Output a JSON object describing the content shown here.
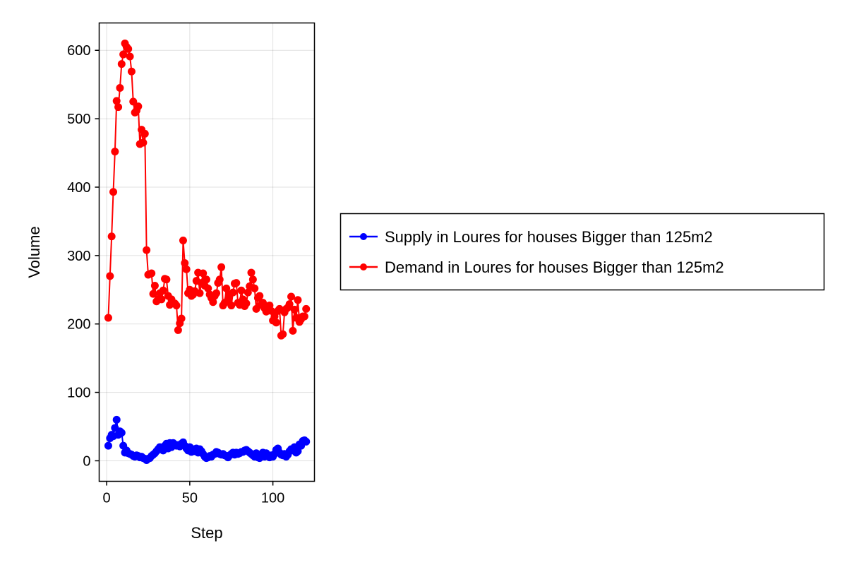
{
  "chart_data": {
    "type": "line",
    "title": "",
    "xlabel": "Step",
    "ylabel": "Volume",
    "xlim": [
      -4.5,
      125
    ],
    "ylim": [
      -30,
      640
    ],
    "xticks": [
      0,
      50,
      100
    ],
    "yticks": [
      0,
      100,
      200,
      300,
      400,
      500,
      600
    ],
    "xtick_labels": [
      "0",
      "50",
      "100"
    ],
    "ytick_labels": [
      "0",
      "100",
      "200",
      "300",
      "400",
      "500",
      "600"
    ],
    "grid": true,
    "legend_position": "right",
    "series": [
      {
        "name": "Supply in Loures for houses Bigger than 125m2",
        "color": "#0000ff",
        "marker": "circle",
        "x": [
          1,
          2,
          3,
          4,
          5,
          6,
          7,
          8,
          9,
          10,
          11,
          12,
          13,
          14,
          15,
          16,
          17,
          18,
          19,
          20,
          21,
          22,
          23,
          24,
          25,
          26,
          27,
          28,
          29,
          30,
          31,
          32,
          33,
          34,
          35,
          36,
          37,
          38,
          39,
          40,
          41,
          42,
          43,
          44,
          45,
          46,
          47,
          48,
          49,
          50,
          51,
          52,
          53,
          54,
          55,
          56,
          57,
          58,
          59,
          60,
          61,
          62,
          63,
          64,
          65,
          66,
          67,
          68,
          69,
          70,
          71,
          72,
          73,
          74,
          75,
          76,
          77,
          78,
          79,
          80,
          81,
          82,
          83,
          84,
          85,
          86,
          87,
          88,
          89,
          90,
          91,
          92,
          93,
          94,
          95,
          96,
          97,
          98,
          99,
          100,
          101,
          102,
          103,
          104,
          105,
          106,
          107,
          108,
          109,
          110,
          111,
          112,
          113,
          114,
          115,
          116,
          117,
          118,
          119,
          120
        ],
        "y": [
          22,
          33,
          38,
          36,
          48,
          60,
          38,
          43,
          41,
          22,
          12,
          15,
          11,
          10,
          9,
          7,
          6,
          8,
          7,
          5,
          6,
          4,
          3,
          1,
          3,
          4,
          7,
          9,
          11,
          14,
          17,
          20,
          19,
          15,
          22,
          25,
          18,
          26,
          20,
          26,
          24,
          22,
          23,
          21,
          25,
          27,
          22,
          18,
          15,
          20,
          13,
          17,
          14,
          18,
          12,
          17,
          14,
          10,
          6,
          4,
          5,
          7,
          6,
          9,
          10,
          13,
          12,
          10,
          9,
          10,
          8,
          7,
          5,
          8,
          10,
          12,
          9,
          12,
          10,
          11,
          13,
          13,
          15,
          16,
          14,
          12,
          10,
          8,
          6,
          11,
          5,
          4,
          9,
          12,
          6,
          11,
          7,
          5,
          8,
          6,
          10,
          16,
          18,
          12,
          9,
          8,
          10,
          6,
          9,
          14,
          17,
          15,
          20,
          12,
          14,
          24,
          22,
          29,
          30,
          28
        ]
      },
      {
        "name": "Demand in Loures for houses Bigger than 125m2",
        "color": "#ff0000",
        "marker": "circle",
        "x": [
          1,
          2,
          3,
          4,
          5,
          6,
          7,
          8,
          9,
          10,
          11,
          12,
          13,
          14,
          15,
          16,
          17,
          18,
          19,
          20,
          21,
          22,
          23,
          24,
          25,
          26,
          27,
          28,
          29,
          30,
          31,
          32,
          33,
          34,
          35,
          36,
          37,
          38,
          39,
          40,
          41,
          42,
          43,
          44,
          45,
          46,
          47,
          48,
          49,
          50,
          51,
          52,
          53,
          54,
          55,
          56,
          57,
          58,
          59,
          60,
          61,
          62,
          63,
          64,
          65,
          66,
          67,
          68,
          69,
          70,
          71,
          72,
          73,
          74,
          75,
          76,
          77,
          78,
          79,
          80,
          81,
          82,
          83,
          84,
          85,
          86,
          87,
          88,
          89,
          90,
          91,
          92,
          93,
          94,
          95,
          96,
          97,
          98,
          99,
          100,
          101,
          102,
          103,
          104,
          105,
          106,
          107,
          108,
          109,
          110,
          111,
          112,
          113,
          114,
          115,
          116,
          117,
          118,
          119,
          120
        ],
        "y": [
          209,
          270,
          328,
          393,
          452,
          526,
          517,
          545,
          580,
          594,
          610,
          605,
          602,
          591,
          569,
          525,
          509,
          512,
          518,
          463,
          484,
          465,
          478,
          308,
          272,
          273,
          274,
          244,
          256,
          233,
          236,
          245,
          236,
          249,
          266,
          265,
          241,
          228,
          236,
          230,
          230,
          227,
          191,
          201,
          208,
          322,
          289,
          280,
          245,
          250,
          241,
          243,
          248,
          263,
          275,
          245,
          260,
          274,
          256,
          265,
          252,
          243,
          238,
          232,
          241,
          245,
          260,
          265,
          283,
          227,
          231,
          252,
          236,
          243,
          227,
          246,
          259,
          260,
          231,
          228,
          249,
          236,
          226,
          230,
          246,
          255,
          275,
          265,
          252,
          222,
          238,
          241,
          228,
          231,
          223,
          218,
          226,
          227,
          219,
          205,
          211,
          202,
          219,
          222,
          183,
          185,
          217,
          222,
          224,
          229,
          240,
          190,
          221,
          209,
          235,
          203,
          207,
          211,
          211,
          222
        ]
      }
    ]
  }
}
